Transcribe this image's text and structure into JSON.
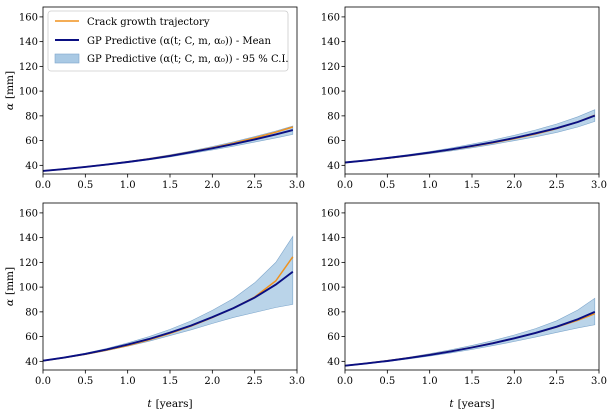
{
  "chart_data": {
    "type": "line",
    "legend": {
      "placement": "top-left",
      "entries": [
        {
          "key": "traj",
          "label": "Crack growth trajectory",
          "color": "#f0921e"
        },
        {
          "key": "mean",
          "label": "GP Predictive (α(t; C, m, α₀)) - Mean",
          "color": "#0a0f82"
        },
        {
          "key": "ci",
          "label": "GP Predictive (α(t; C, m, α₀)) - 95 % C.I.",
          "color": "#a9c9e4"
        }
      ]
    },
    "xlabel_prefix": "t",
    "xlabel_unit": "[years]",
    "ylabel_prefix": "α",
    "ylabel_unit": "[mm]",
    "xlim": [
      0.0,
      3.0
    ],
    "ylim": [
      33,
      168
    ],
    "xticks": [
      "0.0",
      "0.5",
      "1.0",
      "1.5",
      "2.0",
      "2.5",
      "3.0"
    ],
    "yticks": [
      "40",
      "60",
      "80",
      "100",
      "120",
      "140",
      "160"
    ],
    "panels": [
      {
        "name": "top-left",
        "x": [
          0.0,
          0.25,
          0.5,
          0.75,
          1.0,
          1.25,
          1.5,
          1.75,
          2.0,
          2.25,
          2.5,
          2.75,
          2.95
        ],
        "mean": [
          35.5,
          37.0,
          38.7,
          40.6,
          42.7,
          45.0,
          47.6,
          50.6,
          53.8,
          57.2,
          61.0,
          65.0,
          68.5
        ],
        "lower": [
          35.2,
          36.8,
          38.4,
          40.2,
          42.2,
          44.4,
          46.8,
          49.6,
          52.5,
          55.5,
          58.8,
          62.2,
          65.0
        ],
        "upper": [
          35.8,
          37.3,
          39.0,
          41.0,
          43.2,
          45.7,
          48.5,
          51.7,
          55.2,
          59.0,
          63.2,
          67.8,
          71.8
        ],
        "trajectory": [
          35.5,
          37.0,
          38.7,
          40.6,
          42.8,
          45.2,
          47.9,
          50.9,
          54.3,
          58.0,
          62.2,
          66.8,
          71.0
        ]
      },
      {
        "name": "top-right",
        "x": [
          0.0,
          0.25,
          0.5,
          0.75,
          1.0,
          1.25,
          1.5,
          1.75,
          2.0,
          2.25,
          2.5,
          2.75,
          2.95
        ],
        "mean": [
          42.3,
          44.0,
          45.9,
          48.0,
          50.3,
          52.9,
          55.7,
          58.7,
          62.1,
          65.9,
          70.0,
          75.0,
          80.2
        ],
        "lower": [
          42.0,
          43.6,
          45.4,
          47.3,
          49.4,
          51.7,
          54.2,
          56.9,
          59.9,
          63.1,
          66.6,
          71.0,
          75.5
        ],
        "upper": [
          42.6,
          44.4,
          46.4,
          48.7,
          51.2,
          54.0,
          57.2,
          60.5,
          64.3,
          68.6,
          73.4,
          79.2,
          85.0
        ],
        "trajectory": [
          42.3,
          43.9,
          45.7,
          47.8,
          50.1,
          52.7,
          55.3,
          58.3,
          61.6,
          65.3,
          69.6,
          75.1,
          80.5
        ]
      },
      {
        "name": "bottom-left",
        "x": [
          0.0,
          0.25,
          0.5,
          0.75,
          1.0,
          1.25,
          1.5,
          1.75,
          2.0,
          2.25,
          2.5,
          2.75,
          2.95
        ],
        "mean": [
          40.5,
          43.0,
          46.0,
          49.5,
          53.5,
          58.0,
          63.2,
          69.0,
          75.8,
          83.0,
          91.5,
          102.0,
          112.5
        ],
        "lower": [
          40.2,
          42.6,
          45.4,
          48.6,
          52.2,
          56.2,
          60.8,
          65.5,
          70.6,
          75.5,
          79.5,
          83.5,
          86.0
        ],
        "upper": [
          40.8,
          43.4,
          46.6,
          50.4,
          54.9,
          59.9,
          65.8,
          72.7,
          81.2,
          90.8,
          103.5,
          120.0,
          141.0
        ],
        "trajectory": [
          40.5,
          43.0,
          45.8,
          49.0,
          52.8,
          57.3,
          62.6,
          68.6,
          75.4,
          83.0,
          92.0,
          105.0,
          124.5
        ]
      },
      {
        "name": "bottom-right",
        "x": [
          0.0,
          0.25,
          0.5,
          0.75,
          1.0,
          1.25,
          1.5,
          1.75,
          2.0,
          2.25,
          2.5,
          2.75,
          2.95
        ],
        "mean": [
          36.5,
          38.3,
          40.3,
          42.6,
          45.2,
          48.0,
          51.2,
          54.7,
          58.6,
          63.0,
          68.0,
          74.0,
          80.0
        ],
        "lower": [
          36.2,
          37.9,
          39.8,
          41.9,
          44.2,
          46.8,
          49.6,
          52.7,
          56.0,
          59.6,
          63.4,
          67.0,
          69.5
        ],
        "upper": [
          36.8,
          38.7,
          40.8,
          43.3,
          46.2,
          49.3,
          52.9,
          56.8,
          61.3,
          66.5,
          72.8,
          81.5,
          91.0
        ],
        "trajectory": [
          36.5,
          38.3,
          40.5,
          42.8,
          45.3,
          48.1,
          51.3,
          54.8,
          58.6,
          62.9,
          67.8,
          73.2,
          78.5
        ]
      }
    ]
  }
}
